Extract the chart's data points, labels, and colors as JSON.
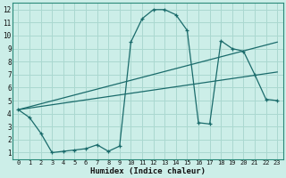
{
  "xlabel": "Humidex (Indice chaleur)",
  "background_color": "#cceee8",
  "grid_color": "#aad8d0",
  "line_color": "#1a6b6b",
  "spine_color": "#2a8a7a",
  "xlim": [
    -0.5,
    23.5
  ],
  "ylim": [
    0.5,
    12.5
  ],
  "xticks": [
    0,
    1,
    2,
    3,
    4,
    5,
    6,
    7,
    8,
    9,
    10,
    11,
    12,
    13,
    14,
    15,
    16,
    17,
    18,
    19,
    20,
    21,
    22,
    23
  ],
  "yticks": [
    1,
    2,
    3,
    4,
    5,
    6,
    7,
    8,
    9,
    10,
    11,
    12
  ],
  "series1_x": [
    0,
    1,
    2,
    3,
    4,
    5,
    6,
    7,
    8,
    9,
    10,
    11,
    12,
    13,
    14,
    15,
    16,
    17,
    18,
    19,
    20,
    21,
    22,
    23
  ],
  "series1_y": [
    4.3,
    3.7,
    2.5,
    1.0,
    1.1,
    1.2,
    1.3,
    1.6,
    1.1,
    1.5,
    9.5,
    11.3,
    12.0,
    12.0,
    11.6,
    10.4,
    3.3,
    3.2,
    9.6,
    9.0,
    8.8,
    7.0,
    5.1,
    5.0
  ],
  "series2_x": [
    0,
    23
  ],
  "series2_y": [
    4.3,
    9.5
  ],
  "series3_x": [
    0,
    23
  ],
  "series3_y": [
    4.3,
    7.2
  ]
}
